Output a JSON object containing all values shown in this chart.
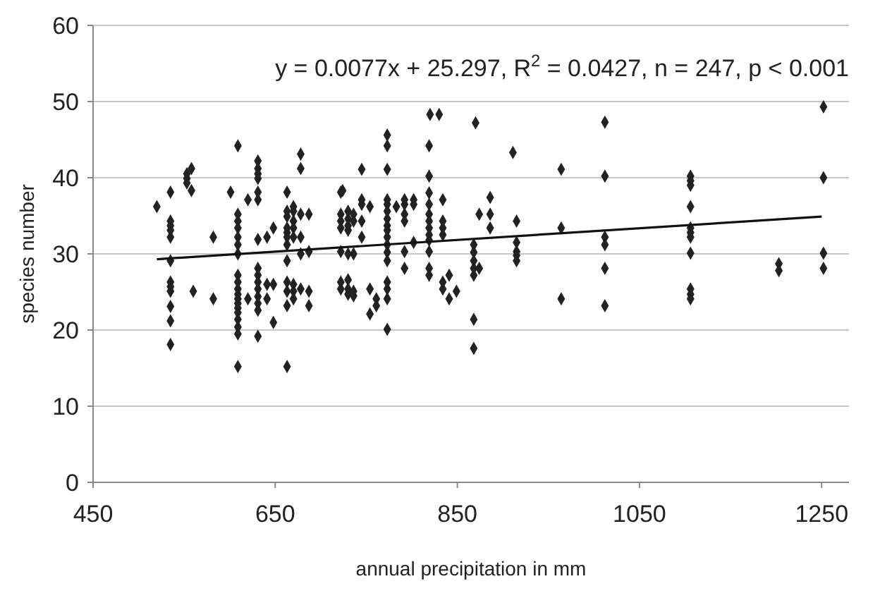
{
  "chart_data": {
    "type": "scatter",
    "xlabel": "annual precipitation in mm",
    "ylabel": "species number",
    "xlim": [
      450,
      1280
    ],
    "ylim": [
      0,
      60
    ],
    "xticks": [
      450,
      650,
      850,
      1050,
      1250
    ],
    "yticks": [
      0,
      10,
      20,
      30,
      40,
      50,
      60
    ],
    "grid": "y",
    "annotations": [
      "y = 0.0077x + 25.297, R$^{2}$ = 0.0427, n = 247, p < 0.001"
    ],
    "series": [
      {
        "color": "#222222",
        "marker": "diamond",
        "x": [
          520,
          535,
          535,
          535,
          535,
          535,
          535,
          535,
          535,
          535,
          535,
          535,
          535,
          553,
          553,
          553,
          558,
          558,
          560,
          582,
          582,
          601,
          609,
          609,
          609,
          609,
          609,
          609,
          609,
          609,
          609,
          609,
          609,
          609,
          609,
          609,
          609,
          609,
          609,
          609,
          609,
          620,
          620,
          631,
          631,
          631,
          631,
          631,
          631,
          631,
          631,
          631,
          631,
          631,
          631,
          631,
          631,
          631,
          641,
          641,
          641,
          648,
          648,
          648,
          663,
          663,
          663,
          663,
          663,
          663,
          663,
          663,
          663,
          663,
          663,
          663,
          670,
          670,
          670,
          670,
          670,
          670,
          670,
          670,
          678,
          678,
          678,
          678,
          678,
          678,
          687,
          687,
          687,
          687,
          722,
          722,
          722,
          722,
          722,
          722,
          722,
          724,
          730,
          730,
          730,
          730,
          730,
          730,
          730,
          730,
          736,
          736,
          736,
          736,
          736,
          745,
          745,
          745,
          745,
          745,
          754,
          754,
          754,
          761,
          761,
          773,
          773,
          773,
          773,
          773,
          773,
          773,
          773,
          773,
          773,
          773,
          773,
          773,
          773,
          773,
          773,
          783,
          792,
          792,
          792,
          792,
          792,
          792,
          802,
          802,
          802,
          819,
          819,
          819,
          819,
          819,
          819,
          819,
          819,
          819,
          819,
          819,
          819,
          773,
          820,
          830,
          834,
          834,
          834,
          834,
          834,
          834,
          841,
          841,
          849,
          868,
          868,
          868,
          868,
          868,
          868,
          868,
          870,
          874,
          874,
          886,
          886,
          886,
          911,
          915,
          915,
          915,
          915,
          915,
          964,
          964,
          964,
          1012,
          1012,
          1012,
          1012,
          1012,
          1012,
          1106,
          1106,
          1106,
          1106,
          1106,
          1106,
          1106,
          1106,
          1106,
          1106,
          1106,
          1203,
          1203,
          1252,
          1252,
          1252,
          1252
        ],
        "values": [
          36.2,
          38.1,
          34.3,
          33.7,
          33.1,
          32.2,
          29.1,
          26.3,
          25.7,
          25.1,
          23.1,
          21.2,
          18.1,
          40.5,
          39.9,
          39.3,
          41.2,
          38.3,
          25.1,
          32.2,
          24.1,
          38.1,
          44.2,
          35.2,
          34.3,
          33.4,
          32.2,
          31.2,
          30,
          27.2,
          26.3,
          25.4,
          24.7,
          24.1,
          23.5,
          22.9,
          22.3,
          21.4,
          20.4,
          19.5,
          15.2,
          37.1,
          24.1,
          42.2,
          41.2,
          40.5,
          39.9,
          38.1,
          37.1,
          31.9,
          28.1,
          27.2,
          26.3,
          25.4,
          24.4,
          23.5,
          22.6,
          19.2,
          32.2,
          26,
          24.1,
          33.4,
          26,
          21,
          38.1,
          35.6,
          34.9,
          33.4,
          32.8,
          32.2,
          31.2,
          29.1,
          26.3,
          25.1,
          23.2,
          15.2,
          36.2,
          35.6,
          34.3,
          33.4,
          32.2,
          26,
          25.1,
          24.1,
          43.1,
          41.2,
          35.2,
          32.2,
          30,
          25.4,
          35.2,
          30.3,
          25.1,
          23.2,
          38.1,
          35.2,
          34.3,
          33.4,
          30.3,
          26.3,
          25.4,
          38.3,
          35.6,
          34.6,
          33.7,
          33.1,
          30,
          26.6,
          25.4,
          24.7,
          35.2,
          34.3,
          30,
          25.1,
          24.5,
          41.1,
          37.1,
          36.5,
          34.3,
          32.2,
          36.2,
          25.4,
          22.1,
          23.2,
          24.1,
          45.6,
          44.2,
          41.1,
          37.1,
          36.5,
          35.6,
          34.6,
          33.7,
          33.1,
          32.2,
          31.2,
          30.2,
          29.1,
          26.3,
          25.4,
          24.1,
          36.2,
          37.1,
          36.5,
          35.2,
          34.3,
          30.3,
          28.1,
          37.1,
          36.5,
          31.5,
          44.2,
          40.2,
          38,
          36.5,
          35.2,
          34.3,
          33.4,
          32.5,
          31.8,
          30.3,
          28.1,
          27.2,
          20.1,
          48.3,
          48.3,
          37.1,
          34.3,
          33.4,
          32.5,
          26.3,
          25.4,
          27.2,
          24.1,
          25.1,
          31.2,
          30.2,
          29.1,
          28.1,
          27.2,
          21.4,
          17.6,
          47.2,
          35.2,
          28.1,
          37.4,
          35.2,
          33.4,
          43.3,
          34.3,
          31.5,
          30.3,
          29.8,
          29.1,
          41.1,
          33.4,
          24.1,
          47.3,
          40.2,
          32.2,
          31.2,
          28.1,
          23.2,
          40.2,
          39.6,
          39,
          36.2,
          33.4,
          32.8,
          32.2,
          30.1,
          25.4,
          24.7,
          24.1,
          28.7,
          27.8,
          49.3,
          40,
          30.1,
          28.1
        ]
      },
      {
        "type": "line",
        "marker": "none",
        "color": "#111111",
        "x": [
          520,
          1250
        ],
        "values": [
          29.3,
          34.9
        ]
      }
    ]
  }
}
